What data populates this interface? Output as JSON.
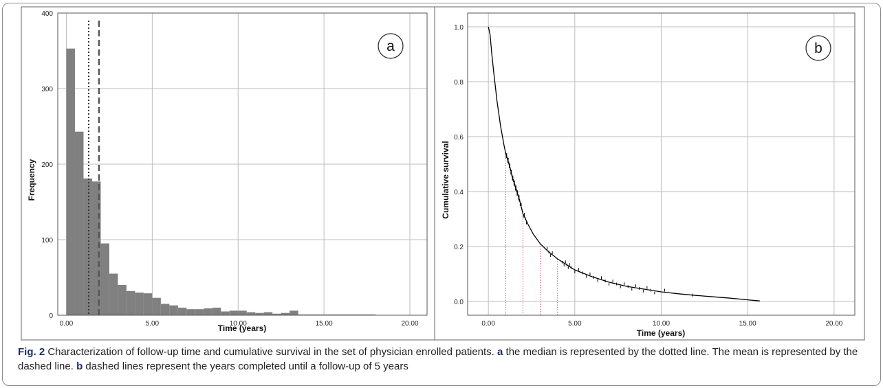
{
  "figure": {
    "caption_label": "Fig. 2",
    "caption_text": "Characterization of follow-up time and cumulative survival in the set of physician enrolled patients.",
    "caption_a_marker": "a",
    "caption_a_text": "the median is represented by the dotted line. The mean is represented by the dashed line.",
    "caption_b_marker": "b",
    "caption_b_text": "dashed lines represent the years completed until a follow-up of 5 years"
  },
  "chart_data": [
    {
      "type": "bar",
      "panel_label": "a",
      "xlabel": "Time (years)",
      "ylabel": "Frequency",
      "xlim": [
        -0.5,
        21
      ],
      "ylim": [
        0,
        400
      ],
      "x_ticks": [
        "0.00",
        "5.00",
        "10.00",
        "15.00",
        "20.00"
      ],
      "x_tick_values": [
        0,
        5,
        10,
        15,
        20
      ],
      "y_ticks": [
        "0",
        "100",
        "200",
        "300",
        "400"
      ],
      "y_tick_values": [
        0,
        100,
        200,
        300,
        400
      ],
      "grid": true,
      "bin_width": 0.5,
      "bin_start": 0,
      "values": [
        353,
        243,
        181,
        177,
        95,
        55,
        40,
        32,
        30,
        29,
        23,
        15,
        13,
        10,
        8,
        8,
        9,
        10,
        5,
        6,
        6,
        4,
        3,
        4,
        2,
        3,
        6,
        1,
        1,
        1,
        1,
        1,
        1,
        1,
        1,
        1,
        0,
        0,
        0,
        0
      ],
      "bar_color": "#808080",
      "median": 1.3,
      "mean": 1.9
    },
    {
      "type": "line",
      "panel_label": "b",
      "xlabel": "Time (years)",
      "ylabel": "Cumulative survival",
      "xlim": [
        -1.2,
        21.2
      ],
      "ylim": [
        -0.05,
        1.05
      ],
      "x_ticks": [
        "0.00",
        "5.00",
        "10.00",
        "15.00",
        "20.00"
      ],
      "x_tick_values": [
        0,
        5,
        10,
        15,
        20
      ],
      "y_ticks": [
        "0.0",
        "0.2",
        "0.4",
        "0.6",
        "0.8",
        "1.0"
      ],
      "y_tick_values": [
        0,
        0.2,
        0.4,
        0.6,
        0.8,
        1.0
      ],
      "grid": true,
      "series": [
        {
          "x": [
            0,
            0.1,
            0.2,
            0.3,
            0.5,
            0.7,
            0.9,
            1.0,
            1.2,
            1.4,
            1.6,
            1.8,
            2.0,
            2.3,
            2.6,
            3.0,
            3.5,
            4.0,
            4.5,
            5.0,
            6.0,
            7.0,
            8.0,
            9.0,
            10.0,
            11.0,
            12.0,
            13.0,
            14.0,
            15.0,
            15.7
          ],
          "y": [
            1.0,
            0.97,
            0.9,
            0.84,
            0.73,
            0.64,
            0.57,
            0.54,
            0.5,
            0.45,
            0.41,
            0.37,
            0.32,
            0.28,
            0.245,
            0.21,
            0.18,
            0.155,
            0.135,
            0.115,
            0.09,
            0.07,
            0.055,
            0.045,
            0.035,
            0.028,
            0.022,
            0.017,
            0.012,
            0.006,
            0.002
          ],
          "color": "#000000"
        }
      ],
      "reference_years": [
        1,
        2,
        3,
        4
      ],
      "reference_color": "#e05070"
    }
  ]
}
